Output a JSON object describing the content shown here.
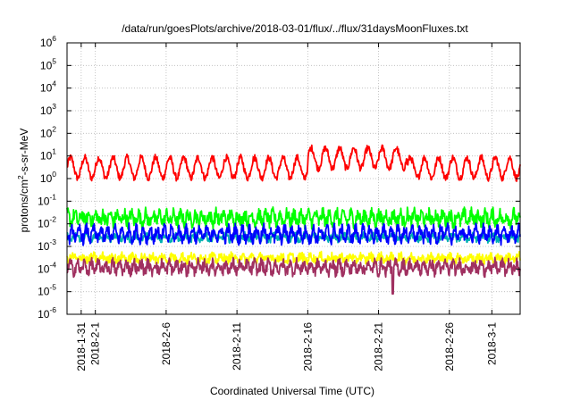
{
  "chart_data": {
    "type": "line",
    "title": "/data/run/goesPlots/archive/2018-03-01/flux/../flux/31daysMoonFluxes.txt",
    "xlabel": "Coordinated Universal Time (UTC)",
    "ylabel": "protons/cm²-s-sr-MeV",
    "ylabel_base": "protons/cm",
    "ylabel_sup": "2",
    "ylabel_rest": "-s-sr-MeV",
    "yscale": "log",
    "ylim": [
      1e-06,
      1000000.0
    ],
    "xlim": [
      "2018-01-30",
      "2018-03-03"
    ],
    "grid": true,
    "y_ticks": [
      {
        "value": 1e-06,
        "base": "10",
        "exp": "-6"
      },
      {
        "value": 1e-05,
        "base": "10",
        "exp": "-5"
      },
      {
        "value": 0.0001,
        "base": "10",
        "exp": "-4"
      },
      {
        "value": 0.001,
        "base": "10",
        "exp": "-3"
      },
      {
        "value": 0.01,
        "base": "10",
        "exp": "-2"
      },
      {
        "value": 0.1,
        "base": "10",
        "exp": "-1"
      },
      {
        "value": 1.0,
        "base": "10",
        "exp": "0"
      },
      {
        "value": 10.0,
        "base": "10",
        "exp": "1"
      },
      {
        "value": 100.0,
        "base": "10",
        "exp": "2"
      },
      {
        "value": 1000.0,
        "base": "10",
        "exp": "3"
      },
      {
        "value": 10000.0,
        "base": "10",
        "exp": "4"
      },
      {
        "value": 100000.0,
        "base": "10",
        "exp": "5"
      },
      {
        "value": 1000000.0,
        "base": "10",
        "exp": "6"
      }
    ],
    "x_ticks": [
      {
        "date": "2018-01-31",
        "label": "2018-1-31"
      },
      {
        "date": "2018-02-01",
        "label": "2018-2-1"
      },
      {
        "date": "2018-02-06",
        "label": "2018-2-6"
      },
      {
        "date": "2018-02-11",
        "label": "2018-2-11"
      },
      {
        "date": "2018-02-16",
        "label": "2018-2-16"
      },
      {
        "date": "2018-02-21",
        "label": "2018-2-21"
      },
      {
        "date": "2018-02-26",
        "label": "2018-2-26"
      },
      {
        "date": "2018-03-01",
        "label": "2018-3-1"
      }
    ],
    "series": [
      {
        "color": "#ff0000",
        "level": 3.0,
        "amplitude": 0.45,
        "period_days": 1.0,
        "noise": 0.15,
        "bumps": [
          {
            "start": "2018-02-16",
            "end": "2018-02-23",
            "level": 8.0
          }
        ],
        "dip": null
      },
      {
        "color": "#00ff00",
        "level": 0.018,
        "amplitude": 0.2,
        "period_days": 0.5,
        "noise": 0.3,
        "bumps": [],
        "dip": null
      },
      {
        "color": "#00b0b0",
        "level": 0.0025,
        "amplitude": 0.1,
        "period_days": 0.7,
        "noise": 0.15,
        "bumps": [],
        "dip": null
      },
      {
        "color": "#0000ff",
        "level": 0.0035,
        "amplitude": 0.25,
        "period_days": 0.5,
        "noise": 0.25,
        "bumps": [],
        "dip": null
      },
      {
        "color": "#ffff00",
        "level": 0.0003,
        "amplitude": 0.1,
        "period_days": 0.7,
        "noise": 0.2,
        "bumps": [],
        "dip": null
      },
      {
        "color": "#a03060",
        "level": 0.00012,
        "amplitude": 0.2,
        "period_days": 0.5,
        "noise": 0.25,
        "bumps": [],
        "dip": {
          "date": "2018-02-22",
          "value": 8e-06
        }
      }
    ]
  }
}
